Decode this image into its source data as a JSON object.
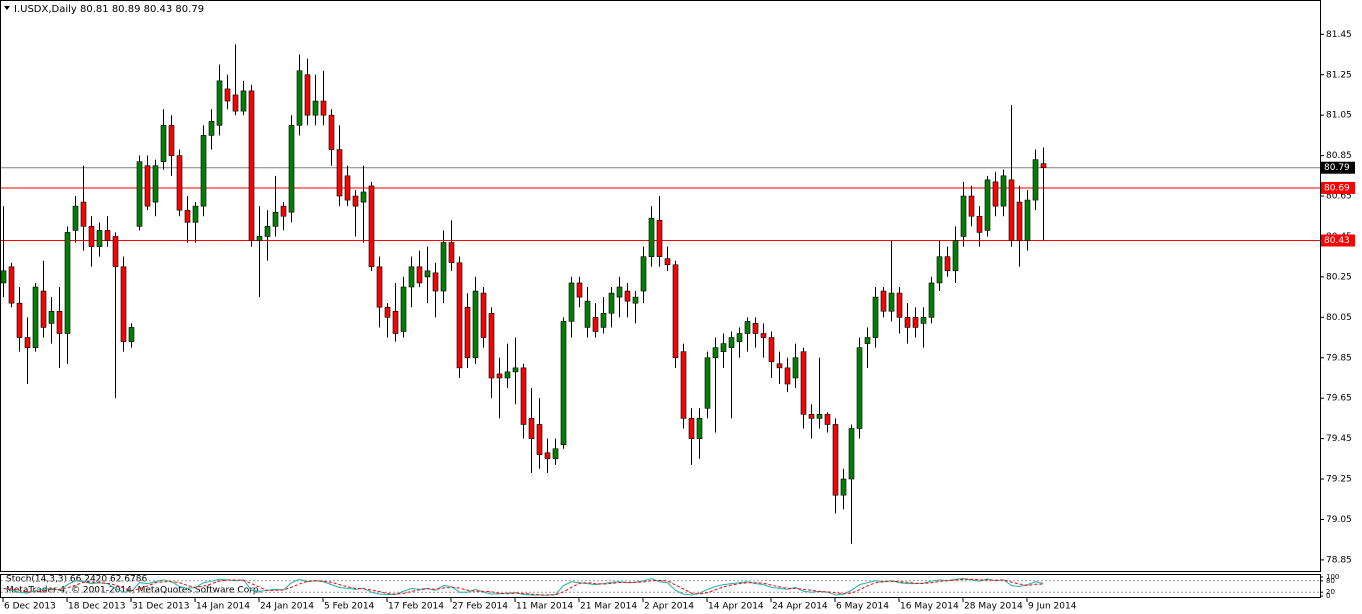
{
  "chart_data": [
    {
      "type": "candlestick",
      "title": "I.USDX,Daily  80.81 80.89 80.43 80.79",
      "footer": "MetaTrader 4, © 2001-2014, MetaQuotes Software Corp.",
      "categories": [
        "6 Dec 2013",
        null,
        null,
        null,
        null,
        null,
        null,
        null,
        "18 Dec 2013",
        null,
        null,
        null,
        null,
        null,
        null,
        null,
        "31 Dec 2013",
        null,
        null,
        null,
        null,
        null,
        null,
        null,
        "14 Jan 2014",
        null,
        null,
        null,
        null,
        null,
        null,
        null,
        "24 Jan 2014",
        null,
        null,
        null,
        null,
        null,
        null,
        null,
        "5 Feb 2014",
        null,
        null,
        null,
        null,
        null,
        null,
        null,
        "17 Feb 2014",
        null,
        null,
        null,
        null,
        null,
        null,
        null,
        "27 Feb 2014",
        null,
        null,
        null,
        null,
        null,
        null,
        null,
        "11 Mar 2014",
        null,
        null,
        null,
        null,
        null,
        null,
        null,
        "21 Mar 2014",
        null,
        null,
        null,
        null,
        null,
        null,
        null,
        "2 Apr 2014",
        null,
        null,
        null,
        null,
        null,
        null,
        null,
        "14 Apr 2014",
        null,
        null,
        null,
        null,
        null,
        null,
        null,
        "24 Apr 2014",
        null,
        null,
        null,
        null,
        null,
        null,
        null,
        "6 May 2014",
        null,
        null,
        null,
        null,
        null,
        null,
        null,
        "16 May 2014",
        null,
        null,
        null,
        null,
        null,
        null,
        null,
        "28 May 2014",
        null,
        null,
        null,
        null,
        null,
        null,
        null,
        "9 Jun 2014",
        null,
        null
      ],
      "open": [
        80.22,
        80.3,
        80.12,
        79.95,
        79.9,
        80.18,
        80.02,
        80.08,
        79.97,
        80.48,
        80.62,
        80.5,
        80.4,
        80.48,
        80.45,
        80.3,
        79.93,
        80.5,
        80.8,
        80.62,
        80.82,
        81.0,
        80.85,
        80.58,
        80.52,
        80.6,
        80.95,
        81.0,
        81.18,
        81.15,
        81.07,
        81.17,
        80.43,
        80.45,
        80.5,
        80.6,
        80.57,
        81.0,
        81.25,
        81.05,
        81.12,
        81.05,
        80.88,
        80.75,
        80.65,
        80.62,
        80.7,
        80.3,
        80.1,
        80.08,
        79.98,
        80.2,
        80.3,
        80.25,
        80.27,
        80.18,
        80.42,
        80.32,
        80.1,
        79.85,
        80.17,
        80.07,
        79.77,
        79.75,
        79.78,
        79.8,
        79.55,
        79.52,
        79.38,
        79.35,
        79.42,
        80.03,
        80.22,
        80.0,
        80.05,
        80.0,
        80.07,
        80.15,
        80.18,
        80.12,
        80.18,
        80.35,
        80.53,
        80.34,
        80.31,
        79.88,
        79.55,
        79.45,
        79.6,
        79.85,
        79.88,
        79.9,
        79.93,
        79.97,
        80.02,
        79.97,
        79.95,
        79.82,
        79.8,
        79.75,
        79.88,
        79.57,
        79.55,
        79.57,
        79.52,
        79.17,
        79.25,
        79.5,
        79.92,
        79.95,
        80.18,
        80.08,
        80.17,
        80.05,
        80.05,
        80.02,
        80.05,
        80.22,
        80.35,
        80.28,
        80.45,
        80.65,
        80.55,
        80.48,
        80.72,
        80.6,
        80.73,
        80.62,
        80.43,
        80.63,
        80.81
      ],
      "high": [
        80.6,
        80.32,
        80.2,
        80.05,
        80.22,
        80.33,
        80.15,
        80.2,
        80.5,
        80.65,
        80.8,
        80.55,
        80.52,
        80.55,
        80.47,
        80.35,
        80.02,
        80.85,
        80.85,
        80.83,
        81.08,
        81.05,
        80.88,
        80.65,
        80.62,
        81.0,
        81.08,
        81.3,
        81.25,
        81.4,
        81.22,
        81.2,
        80.6,
        80.58,
        80.75,
        80.62,
        81.05,
        81.35,
        81.33,
        81.25,
        81.27,
        81.08,
        81.0,
        80.8,
        80.68,
        80.8,
        80.72,
        80.35,
        80.12,
        80.22,
        80.25,
        80.35,
        80.38,
        80.4,
        80.32,
        80.48,
        80.53,
        80.35,
        80.17,
        80.25,
        80.2,
        80.1,
        79.85,
        79.92,
        79.95,
        79.82,
        79.7,
        79.65,
        79.45,
        79.45,
        80.05,
        80.25,
        80.25,
        80.2,
        80.12,
        80.15,
        80.2,
        80.25,
        80.22,
        80.18,
        80.4,
        80.6,
        80.65,
        80.4,
        80.33,
        79.92,
        79.6,
        79.6,
        79.88,
        79.95,
        79.97,
        79.98,
        80.0,
        80.05,
        80.05,
        80.02,
        79.98,
        79.88,
        79.85,
        79.92,
        79.9,
        79.62,
        79.85,
        79.58,
        79.55,
        79.3,
        79.52,
        79.95,
        80.0,
        80.2,
        80.2,
        80.43,
        80.2,
        80.12,
        80.1,
        80.1,
        80.25,
        80.43,
        80.4,
        80.5,
        80.72,
        80.7,
        80.6,
        80.75,
        80.77,
        80.78,
        81.1,
        80.7,
        80.68,
        80.88,
        80.89
      ],
      "low": [
        80.15,
        80.1,
        79.88,
        79.72,
        79.88,
        79.95,
        79.92,
        79.8,
        79.82,
        80.42,
        80.38,
        80.3,
        80.35,
        80.4,
        79.65,
        79.88,
        79.9,
        80.48,
        80.58,
        80.55,
        80.78,
        80.75,
        80.55,
        80.42,
        80.42,
        80.55,
        80.88,
        80.95,
        81.08,
        81.05,
        81.05,
        80.4,
        80.15,
        80.33,
        80.45,
        80.48,
        80.52,
        80.95,
        81.0,
        81.0,
        81.0,
        80.8,
        80.6,
        80.6,
        80.45,
        80.42,
        80.28,
        80.0,
        79.95,
        79.93,
        79.95,
        80.1,
        80.2,
        80.12,
        80.05,
        80.12,
        80.28,
        79.75,
        79.8,
        79.82,
        79.9,
        79.65,
        79.55,
        79.7,
        79.62,
        79.45,
        79.28,
        79.3,
        79.28,
        79.32,
        79.4,
        79.95,
        80.1,
        79.95,
        79.95,
        79.97,
        80.0,
        80.05,
        80.05,
        80.02,
        80.12,
        80.3,
        80.3,
        80.28,
        79.8,
        79.5,
        79.32,
        79.35,
        79.55,
        79.48,
        79.8,
        79.55,
        79.85,
        79.88,
        79.9,
        79.85,
        79.75,
        79.72,
        79.68,
        79.7,
        79.5,
        79.45,
        79.5,
        79.48,
        79.08,
        79.1,
        78.93,
        79.45,
        79.8,
        79.9,
        80.05,
        80.03,
        79.97,
        79.92,
        79.95,
        79.9,
        80.02,
        80.18,
        80.25,
        80.22,
        80.4,
        80.5,
        80.4,
        80.45,
        80.55,
        80.55,
        80.4,
        80.3,
        80.38,
        80.58,
        80.43
      ],
      "close": [
        80.28,
        80.12,
        79.95,
        79.9,
        80.2,
        80.0,
        80.08,
        79.97,
        80.47,
        80.6,
        80.5,
        80.4,
        80.48,
        80.43,
        80.3,
        79.93,
        80.0,
        80.82,
        80.6,
        80.8,
        81.0,
        80.85,
        80.58,
        80.52,
        80.6,
        80.95,
        81.02,
        81.22,
        81.12,
        81.07,
        81.17,
        80.43,
        80.45,
        80.5,
        80.57,
        80.55,
        81.0,
        81.27,
        81.05,
        81.12,
        81.05,
        80.88,
        80.65,
        80.63,
        80.6,
        80.67,
        80.3,
        80.1,
        80.05,
        79.97,
        80.2,
        80.3,
        80.22,
        80.28,
        80.18,
        80.42,
        80.32,
        79.8,
        79.85,
        80.18,
        79.95,
        79.75,
        79.75,
        79.78,
        79.8,
        79.52,
        79.45,
        79.37,
        79.35,
        79.4,
        80.03,
        80.22,
        80.15,
        80.13,
        79.98,
        80.07,
        80.17,
        80.2,
        80.13,
        80.15,
        80.35,
        80.54,
        80.35,
        80.31,
        79.85,
        79.55,
        79.45,
        79.55,
        79.85,
        79.9,
        79.92,
        79.95,
        79.97,
        80.03,
        79.97,
        79.95,
        79.83,
        79.8,
        79.72,
        79.85,
        79.57,
        79.55,
        79.57,
        79.52,
        79.17,
        79.25,
        79.5,
        79.9,
        79.95,
        80.15,
        80.08,
        80.17,
        80.05,
        80.0,
        80.0,
        80.05,
        80.22,
        80.35,
        80.28,
        80.43,
        80.65,
        80.55,
        80.47,
        80.73,
        80.6,
        80.75,
        80.43,
        80.43,
        80.63,
        80.83,
        80.79
      ],
      "up_color": "#008000",
      "down_color": "#ff0000",
      "ylim": [
        78.8,
        81.6
      ],
      "yticks": [
        78.85,
        79.05,
        79.25,
        79.45,
        79.65,
        79.85,
        80.05,
        80.25,
        80.45,
        80.65,
        80.85,
        81.05,
        81.25,
        81.45
      ],
      "price_lines": [
        {
          "value": 80.79,
          "color": "#808080"
        },
        {
          "value": 80.69,
          "color": "#ff0000"
        },
        {
          "value": 80.43,
          "color": "#ff0000"
        }
      ]
    },
    {
      "type": "line",
      "title": "Stoch(14,3,3) 66.2420 62.6786",
      "series": [
        {
          "color": "#20b2aa",
          "values": [
            40,
            30,
            20,
            15,
            30,
            35,
            40,
            30,
            60,
            80,
            75,
            65,
            70,
            65,
            40,
            20,
            25,
            70,
            65,
            75,
            85,
            75,
            50,
            40,
            45,
            70,
            78,
            88,
            85,
            80,
            85,
            30,
            25,
            30,
            35,
            32,
            70,
            88,
            75,
            80,
            75,
            60,
            45,
            40,
            35,
            40,
            20,
            10,
            8,
            8,
            25,
            40,
            35,
            40,
            30,
            55,
            50,
            20,
            20,
            35,
            20,
            10,
            12,
            15,
            18,
            8,
            5,
            5,
            4,
            8,
            55,
            75,
            70,
            65,
            60,
            65,
            72,
            75,
            70,
            72,
            80,
            92,
            75,
            70,
            30,
            10,
            5,
            15,
            35,
            50,
            60,
            65,
            70,
            75,
            65,
            60,
            45,
            40,
            35,
            45,
            25,
            20,
            25,
            20,
            5,
            10,
            30,
            60,
            70,
            80,
            75,
            80,
            70,
            65,
            65,
            68,
            78,
            85,
            80,
            88,
            92,
            85,
            78,
            90,
            80,
            85,
            55,
            50,
            60,
            75,
            66.242
          ]
        },
        {
          "color": "#ff0000",
          "dash": "3,2",
          "values": [
            40,
            35,
            30,
            22,
            22,
            27,
            35,
            35,
            43,
            57,
            72,
            73,
            70,
            67,
            58,
            42,
            28,
            38,
            53,
            70,
            75,
            75,
            70,
            55,
            45,
            52,
            64,
            79,
            84,
            84,
            83,
            65,
            47,
            28,
            30,
            32,
            46,
            63,
            78,
            81,
            77,
            72,
            60,
            48,
            40,
            38,
            32,
            23,
            13,
            9,
            14,
            24,
            33,
            38,
            35,
            42,
            45,
            42,
            30,
            25,
            25,
            22,
            14,
            12,
            15,
            14,
            10,
            6,
            5,
            6,
            22,
            46,
            67,
            70,
            65,
            63,
            66,
            71,
            72,
            72,
            74,
            81,
            82,
            79,
            58,
            37,
            15,
            10,
            18,
            33,
            48,
            58,
            65,
            70,
            70,
            67,
            57,
            48,
            40,
            40,
            35,
            30,
            23,
            22,
            17,
            12,
            15,
            33,
            53,
            70,
            75,
            78,
            75,
            72,
            67,
            66,
            70,
            77,
            81,
            84,
            87,
            88,
            85,
            84,
            83,
            85,
            73,
            63,
            55,
            62,
            62.6786
          ]
        }
      ],
      "ylim": [
        0,
        100
      ],
      "yticks": [
        0,
        20,
        80,
        100
      ],
      "levels": [
        20,
        80
      ]
    }
  ]
}
